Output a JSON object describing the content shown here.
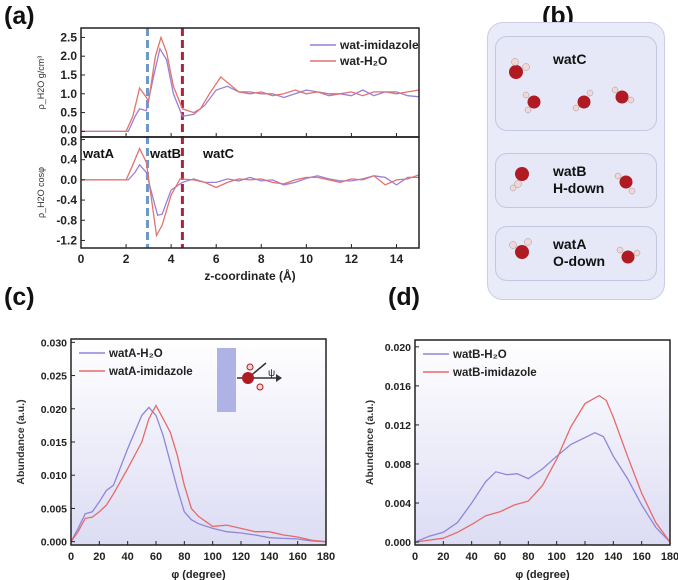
{
  "panels": {
    "a": "(a)",
    "b": "(b)",
    "c": "(c)",
    "d": "(d)"
  },
  "panel_b": {
    "watC": "watC",
    "watB": "watB",
    "watB_sub": "H-down",
    "watA": "watA",
    "watA_sub": "O-down"
  },
  "colors": {
    "h2o": "#e0736f",
    "imidazole": "#9b7fd6",
    "blue_line": "#6b9ac9",
    "red_line": "#b0213a",
    "oxygen": "#b01a22",
    "hydrogen": "#f3d6d6"
  },
  "chart_data": [
    {
      "type": "line",
      "id": "a-top",
      "ylabel": "ρ_H2O g/cm³",
      "xlabel": "z-coordinate (Å)",
      "xlim": [
        0,
        15
      ],
      "ylim": [
        -0.15,
        2.75
      ],
      "xticks": [
        0,
        2,
        4,
        6,
        8,
        10,
        12,
        14
      ],
      "yticks": [
        0.0,
        0.5,
        1.0,
        1.5,
        2.0,
        2.5
      ],
      "legend": "top-right",
      "vlines": [
        2.95,
        4.5
      ],
      "series": [
        {
          "name": "wat-imidazole",
          "color": "#9b7fd6",
          "x": [
            0,
            2.1,
            2.4,
            2.6,
            2.9,
            3.2,
            3.5,
            3.8,
            4.1,
            4.5,
            5.0,
            5.5,
            6.0,
            6.5,
            7,
            7.5,
            8,
            8.5,
            9,
            9.5,
            10,
            10.5,
            11,
            11.5,
            12,
            12.5,
            13,
            13.5,
            14,
            14.5,
            15
          ],
          "y": [
            0,
            0,
            0.4,
            0.6,
            0.55,
            1.4,
            2.2,
            1.9,
            1.0,
            0.4,
            0.45,
            0.7,
            1.1,
            1.2,
            1.05,
            1.05,
            1.0,
            1.0,
            0.9,
            1.0,
            1.1,
            1.05,
            1.0,
            1.0,
            0.95,
            1.1,
            0.95,
            1.05,
            1.05,
            0.95,
            0.92
          ]
        },
        {
          "name": "wat-H₂O",
          "color": "#e0736f",
          "x": [
            0,
            2,
            2.3,
            2.6,
            2.85,
            3.0,
            3.3,
            3.55,
            3.8,
            4.1,
            4.5,
            5.0,
            5.3,
            5.7,
            6.2,
            6.6,
            7,
            7.5,
            8,
            8.5,
            9,
            9.5,
            10,
            10.5,
            11,
            11.5,
            12,
            12.5,
            13,
            13.5,
            14,
            14.5,
            15
          ],
          "y": [
            0,
            0,
            0.4,
            1.15,
            0.95,
            0.8,
            2.0,
            2.5,
            2.1,
            1.2,
            0.6,
            0.5,
            0.6,
            1.0,
            1.45,
            1.25,
            1.05,
            1.0,
            1.05,
            0.95,
            1.0,
            1.1,
            1.0,
            1.05,
            0.95,
            1.0,
            1.05,
            0.95,
            1.05,
            1.05,
            1.0,
            1.05,
            1.1
          ]
        }
      ]
    },
    {
      "type": "line",
      "id": "a-bottom",
      "ylabel": "ρ_H2O cosφ",
      "xlim": [
        0,
        15
      ],
      "ylim": [
        -1.35,
        0.85
      ],
      "yticks": [
        0.8,
        0.4,
        0.0,
        -0.4,
        -0.8,
        -1.2
      ],
      "region_labels": [
        "watA",
        "watB",
        "watC"
      ],
      "series": [
        {
          "name": "wat-imidazole",
          "color": "#9b7fd6",
          "x": [
            0,
            2.1,
            2.4,
            2.6,
            2.9,
            3.1,
            3.4,
            3.6,
            4.0,
            4.5,
            5,
            5.5,
            6,
            6.5,
            7,
            7.5,
            8,
            8.5,
            9,
            9.5,
            10,
            10.5,
            11,
            11.5,
            12,
            12.5,
            13,
            13.5,
            14,
            14.5,
            15
          ],
          "y": [
            0,
            0,
            0.15,
            0.3,
            0.15,
            -0.2,
            -0.7,
            -0.68,
            -0.2,
            -0.05,
            0.02,
            -0.05,
            -0.05,
            0.02,
            -0.02,
            0.05,
            -0.02,
            0,
            -0.1,
            -0.05,
            0.03,
            0.08,
            0.02,
            -0.02,
            -0.02,
            0.02,
            0.08,
            0.05,
            -0.1,
            0.05,
            0.05
          ]
        },
        {
          "name": "wat-H₂O",
          "color": "#e0736f",
          "x": [
            0,
            2,
            2.3,
            2.6,
            2.9,
            3.1,
            3.35,
            3.6,
            4.0,
            4.4,
            5,
            5.5,
            6,
            6.5,
            7,
            7.5,
            8,
            8.5,
            9,
            9.5,
            10,
            10.5,
            11,
            11.5,
            12,
            12.5,
            13,
            13.5,
            14,
            14.5,
            15
          ],
          "y": [
            0,
            0,
            0.3,
            0.62,
            0.35,
            -0.3,
            -1.1,
            -0.9,
            -0.3,
            0.02,
            0,
            -0.05,
            -0.15,
            -0.05,
            0.02,
            0,
            0.02,
            -0.05,
            -0.08,
            0,
            0.05,
            0.05,
            0,
            -0.05,
            0.02,
            0,
            0.08,
            -0.1,
            0,
            0.02,
            0.1
          ]
        }
      ]
    },
    {
      "type": "line",
      "id": "c",
      "xlabel": "φ (degree)",
      "ylabel": "Abundance (a.u.)",
      "xlim": [
        0,
        180
      ],
      "ylim": [
        -0.0005,
        0.0305
      ],
      "xticks": [
        0,
        20,
        40,
        60,
        80,
        100,
        120,
        140,
        160,
        180
      ],
      "yticks": [
        0.0,
        0.005,
        0.01,
        0.015,
        0.02,
        0.025,
        0.03
      ],
      "ytick_labels": [
        "0.000",
        "0.005",
        "0.010",
        "0.015",
        "0.020",
        "0.025",
        "0.030"
      ],
      "legend": "top-left",
      "inset_symbol": "ψ",
      "series": [
        {
          "name": "watA-H₂O",
          "color": "#8f86d8",
          "x": [
            0,
            5,
            10,
            15,
            20,
            25,
            30,
            40,
            50,
            55,
            60,
            65,
            70,
            75,
            80,
            85,
            90,
            100,
            110,
            120,
            130,
            140,
            150,
            160,
            170,
            180
          ],
          "y": [
            0,
            0.002,
            0.0042,
            0.0045,
            0.006,
            0.0077,
            0.0085,
            0.014,
            0.019,
            0.0202,
            0.019,
            0.016,
            0.012,
            0.008,
            0.0045,
            0.0033,
            0.0027,
            0.002,
            0.0015,
            0.0013,
            0.001,
            0.0006,
            0.0005,
            0.0004,
            0.0001,
            0
          ]
        },
        {
          "name": "watA-imidazole",
          "color": "#e66a6a",
          "x": [
            0,
            5,
            10,
            15,
            20,
            25,
            30,
            40,
            50,
            55,
            60,
            65,
            70,
            75,
            80,
            85,
            90,
            100,
            110,
            120,
            130,
            140,
            150,
            160,
            170,
            180
          ],
          "y": [
            0,
            0.0015,
            0.0035,
            0.0037,
            0.0045,
            0.0055,
            0.0072,
            0.011,
            0.015,
            0.0185,
            0.0205,
            0.0185,
            0.0165,
            0.013,
            0.0085,
            0.005,
            0.0038,
            0.0023,
            0.0025,
            0.002,
            0.0015,
            0.0015,
            0.001,
            0.0007,
            0.0002,
            0
          ]
        }
      ]
    },
    {
      "type": "line",
      "id": "d",
      "xlabel": "φ (degree)",
      "ylabel": "Abundance (a.u.)",
      "xlim": [
        0,
        180
      ],
      "ylim": [
        -0.0003,
        0.0207
      ],
      "xticks": [
        0,
        20,
        40,
        60,
        80,
        100,
        120,
        140,
        160,
        180
      ],
      "yticks": [
        0.0,
        0.004,
        0.008,
        0.012,
        0.016,
        0.02
      ],
      "ytick_labels": [
        "0.000",
        "0.004",
        "0.008",
        "0.012",
        "0.016",
        "0.020"
      ],
      "legend": "top-left",
      "series": [
        {
          "name": "watB-H₂O",
          "color": "#8f86d8",
          "x": [
            0,
            10,
            20,
            30,
            40,
            50,
            57,
            65,
            72,
            80,
            90,
            100,
            110,
            120,
            127,
            133,
            140,
            150,
            160,
            170,
            180
          ],
          "y": [
            0,
            0.0006,
            0.001,
            0.002,
            0.004,
            0.0062,
            0.0072,
            0.0069,
            0.007,
            0.0065,
            0.0075,
            0.0088,
            0.01,
            0.0107,
            0.0112,
            0.0108,
            0.0088,
            0.0065,
            0.0038,
            0.0015,
            0
          ]
        },
        {
          "name": "watB-imidazole",
          "color": "#e66a6a",
          "x": [
            0,
            10,
            20,
            30,
            40,
            50,
            60,
            70,
            80,
            90,
            100,
            110,
            120,
            130,
            135,
            140,
            150,
            160,
            170,
            180
          ],
          "y": [
            0,
            0.0002,
            0.0004,
            0.001,
            0.0018,
            0.0027,
            0.0031,
            0.0038,
            0.0042,
            0.0058,
            0.0085,
            0.0118,
            0.0142,
            0.015,
            0.0145,
            0.0128,
            0.0088,
            0.005,
            0.002,
            0
          ]
        }
      ]
    }
  ]
}
